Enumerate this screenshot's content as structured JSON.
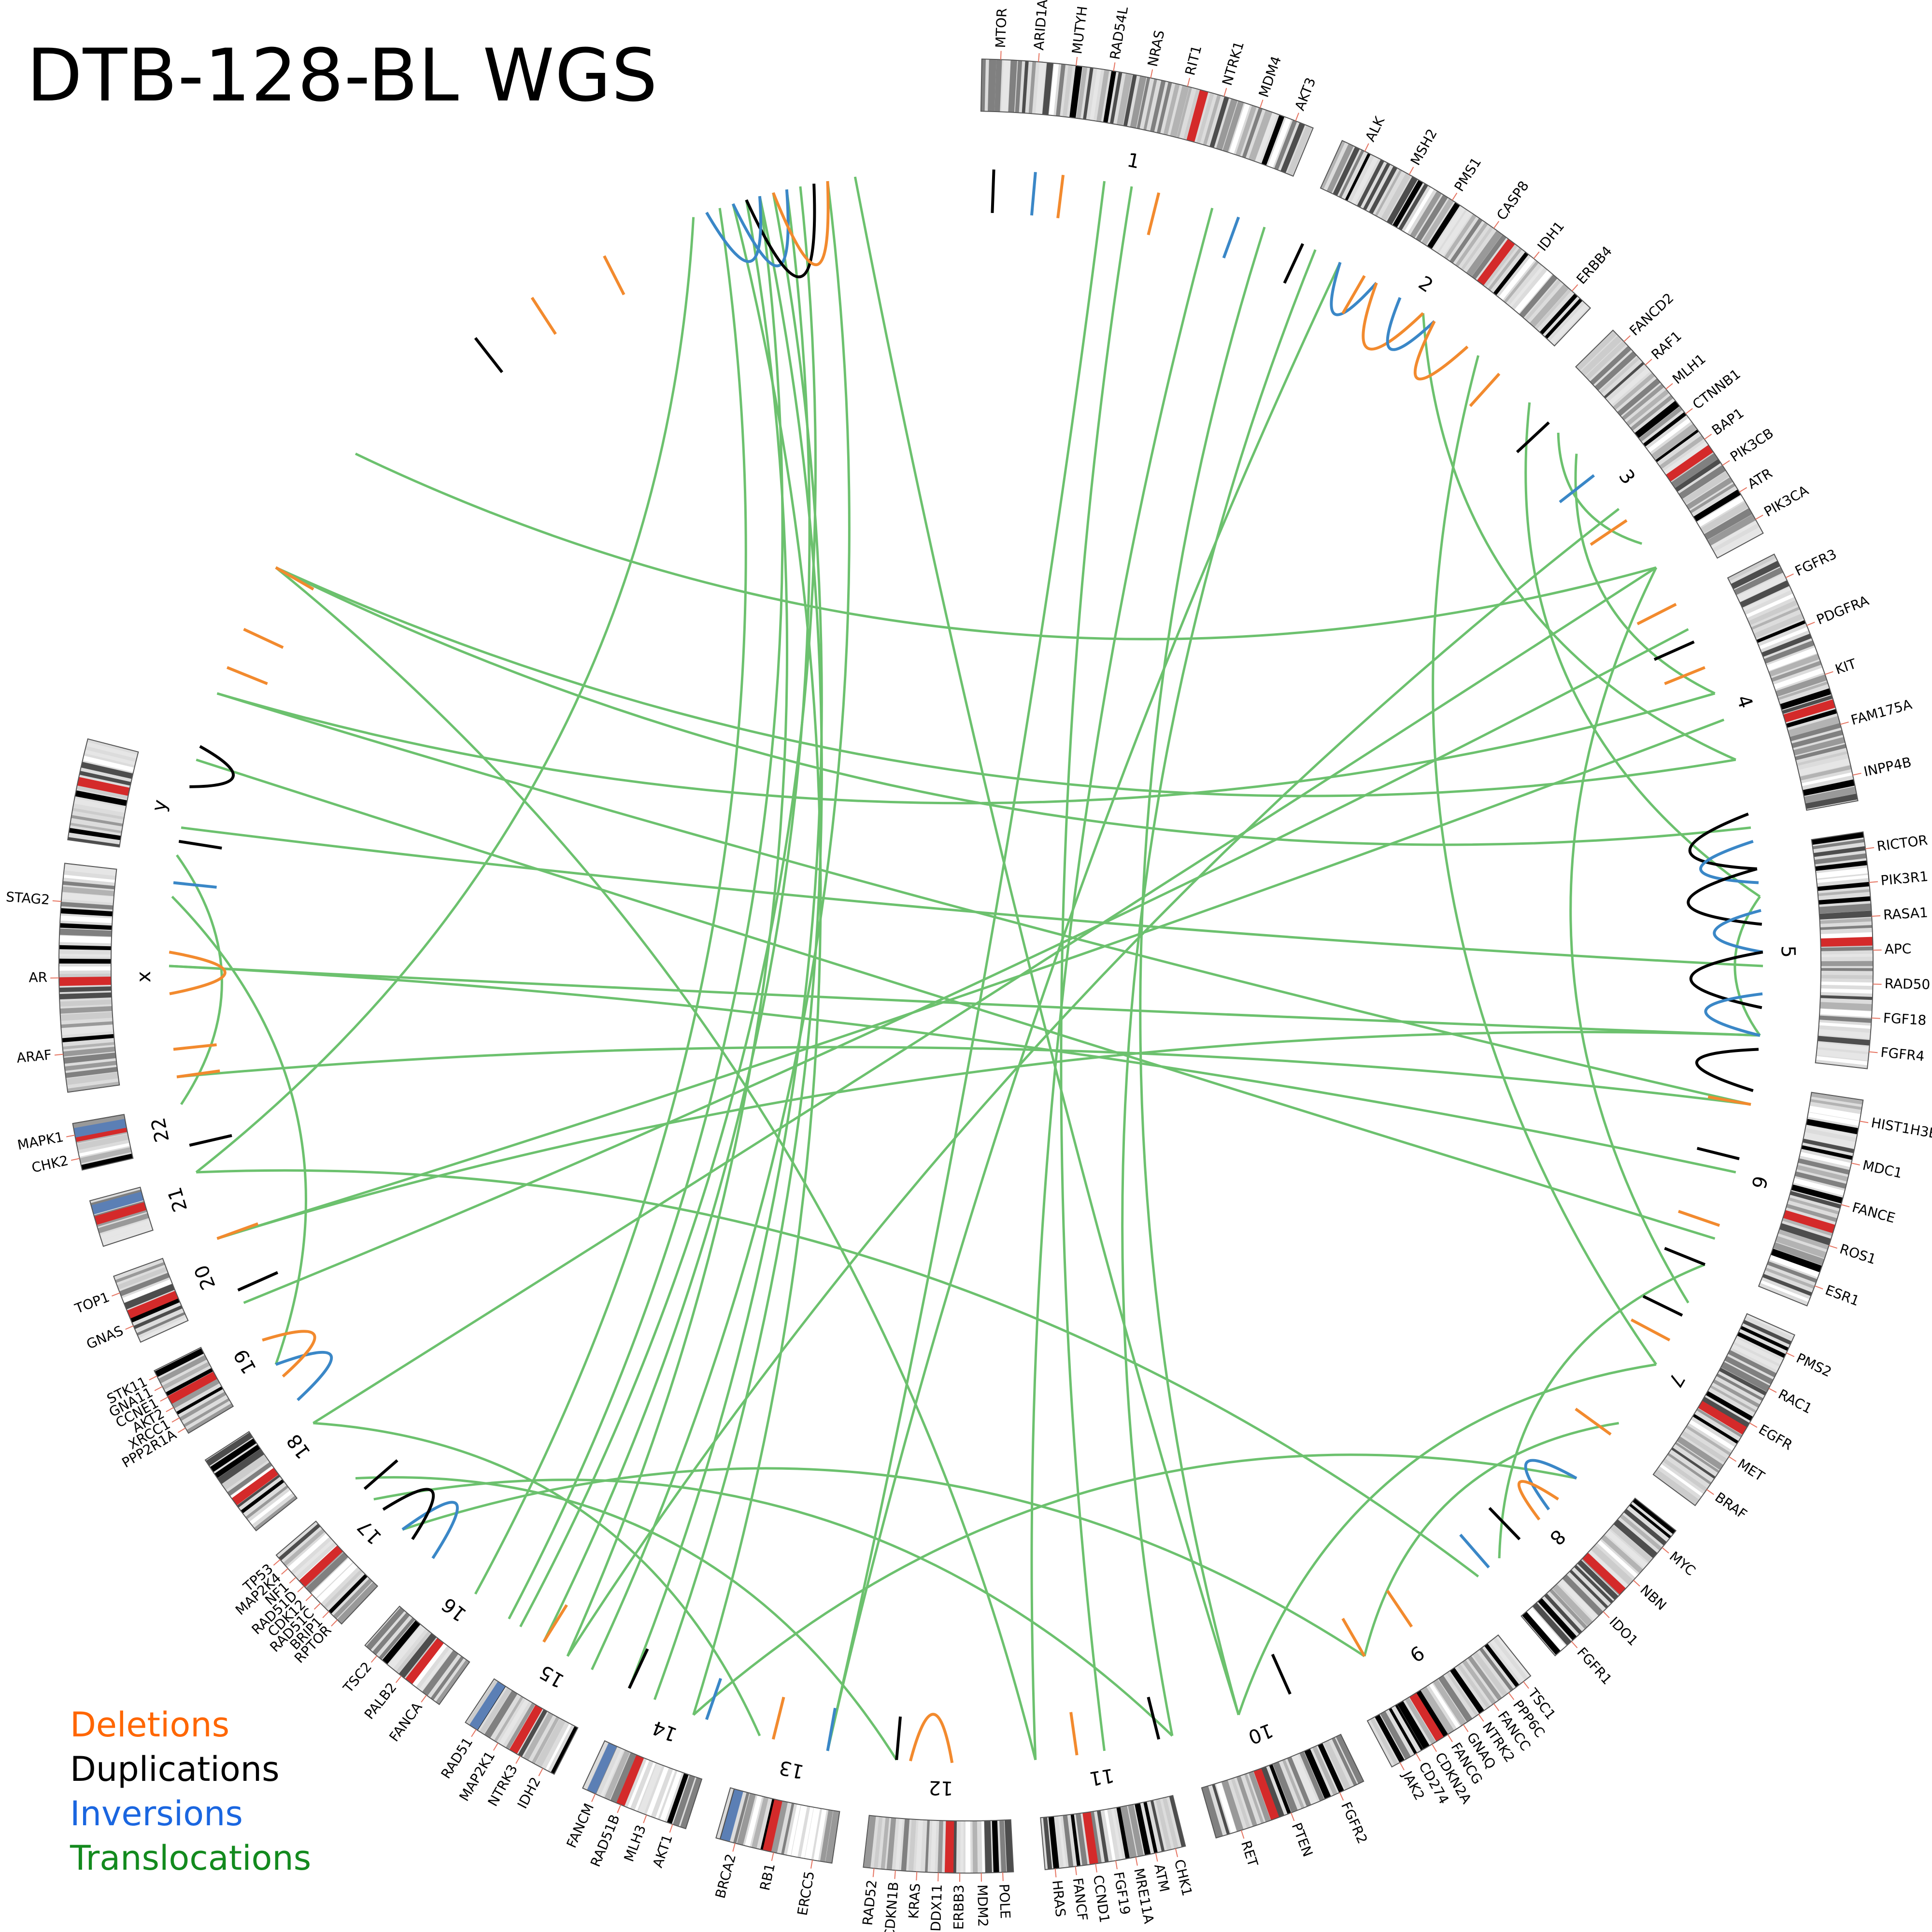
{
  "title": "DTB-128-BL WGS",
  "legend": [
    {
      "label": "Deletions",
      "color": "#ff6600"
    },
    {
      "label": "Duplications",
      "color": "#000000"
    },
    {
      "label": "Inversions",
      "color": "#1a66e0"
    },
    {
      "label": "Translocations",
      "color": "#138a1e"
    }
  ],
  "colors": {
    "deletion": "#f28a2e",
    "duplication": "#000000",
    "inversion": "#3a87c7",
    "translocation": "#6cc16e",
    "marker_red": "#d42a2a",
    "marker_blue": "#5b7fb5",
    "ticks": "#e57360"
  },
  "chromosomes": [
    {
      "name": "1",
      "genes": [
        "MTOR",
        "ARID1A",
        "MUTYH",
        "RAD54L",
        "NRAS",
        "RIT1",
        "NTRK1",
        "MDM4",
        "AKT3"
      ]
    },
    {
      "name": "2",
      "genes": [
        "ALK",
        "MSH2",
        "PMS1",
        "CASP8",
        "IDH1",
        "ERBB4"
      ]
    },
    {
      "name": "3",
      "genes": [
        "FANCD2",
        "RAF1",
        "MLH1",
        "CTNNB1",
        "BAP1",
        "PIK3CB",
        "ATR",
        "PIK3CA"
      ]
    },
    {
      "name": "4",
      "genes": [
        "FGFR3",
        "PDGFRA",
        "KIT",
        "FAM175A",
        "INPP4B"
      ]
    },
    {
      "name": "5",
      "genes": [
        "RICTOR",
        "PIK3R1",
        "RASA1",
        "APC",
        "RAD50",
        "FGF18",
        "FGFR4"
      ]
    },
    {
      "name": "6",
      "genes": [
        "HIST1H3B",
        "MDC1",
        "FANCE",
        "ROS1",
        "ESR1"
      ]
    },
    {
      "name": "7",
      "genes": [
        "PMS2",
        "RAC1",
        "EGFR",
        "MET",
        "BRAF"
      ]
    },
    {
      "name": "8",
      "genes": [
        "MYC",
        "NBN",
        "IDO1",
        "FGFR1"
      ]
    },
    {
      "name": "9",
      "genes": [
        "TSC1",
        "PPP6C",
        "FANCC",
        "NTRK2",
        "GNAQ",
        "FANCG",
        "CDKN2A",
        "CD274",
        "JAK2"
      ]
    },
    {
      "name": "10",
      "genes": [
        "FGFR2",
        "PTEN",
        "RET"
      ]
    },
    {
      "name": "11",
      "genes": [
        "CHK1",
        "ATM",
        "MRE11A",
        "FGF19",
        "CCND1",
        "FANCF",
        "HRAS"
      ]
    },
    {
      "name": "12",
      "genes": [
        "POLE",
        "MDM2",
        "ERBB3",
        "DDX11",
        "KRAS",
        "CDKN1B",
        "RAD52"
      ]
    },
    {
      "name": "13",
      "genes": [
        "ERCC5",
        "RB1",
        "BRCA2"
      ]
    },
    {
      "name": "14",
      "genes": [
        "AKT1",
        "MLH3",
        "RAD51B",
        "FANCM"
      ]
    },
    {
      "name": "15",
      "genes": [
        "IDH2",
        "NTRK3",
        "MAP2K1",
        "RAD51"
      ]
    },
    {
      "name": "16",
      "genes": [
        "FANCA",
        "PALB2",
        "TSC2"
      ]
    },
    {
      "name": "17",
      "genes": [
        "RPTOR",
        "BRIP1",
        "RAD51C",
        "CDK12",
        "RAD51D",
        "NF1",
        "MAP2K4",
        "TP53"
      ]
    },
    {
      "name": "18",
      "genes": []
    },
    {
      "name": "19",
      "genes": [
        "PPP2R1A",
        "XRCC1",
        "AKT2",
        "CCNE1",
        "GNA11",
        "STK11"
      ]
    },
    {
      "name": "20",
      "genes": [
        "GNAS",
        "TOP1"
      ]
    },
    {
      "name": "21",
      "genes": []
    },
    {
      "name": "22",
      "genes": [
        "CHK2",
        "MAPK1"
      ]
    },
    {
      "name": "x",
      "genes": [
        "ARAF",
        "AR",
        "STAG2"
      ]
    },
    {
      "name": "y",
      "genes": []
    }
  ]
}
